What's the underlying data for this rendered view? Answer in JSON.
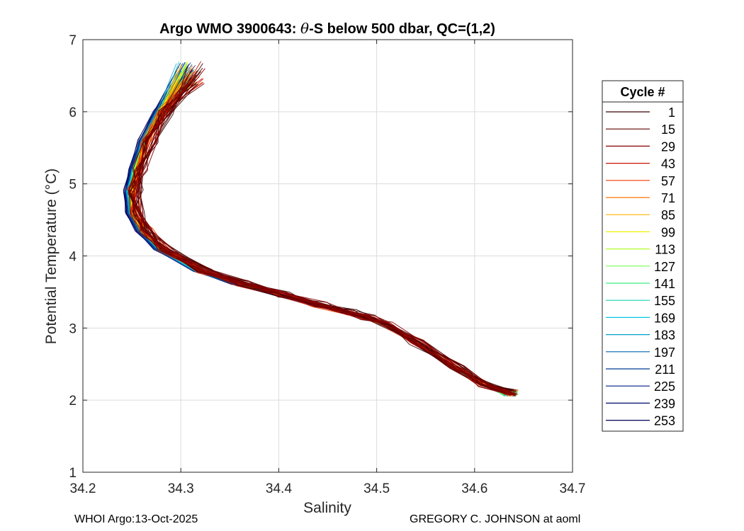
{
  "chart_data": {
    "type": "line",
    "title": "Argo WMO 3900643: θ-S below 500 dbar,  QC=(1,2)",
    "title_parts": {
      "prefix": "Argo WMO 3900643: ",
      "theta": "θ",
      "suffix": "-S below 500 dbar,  QC=(1,2)"
    },
    "xlabel": "Salinity",
    "ylabel": "Potential Temperature (°C)",
    "xlim": [
      34.2,
      34.7
    ],
    "ylim": [
      1,
      7
    ],
    "xticks": [
      "34.2",
      "34.3",
      "34.4",
      "34.5",
      "34.6",
      "34.7"
    ],
    "yticks": [
      "1",
      "2",
      "3",
      "4",
      "5",
      "6",
      "7"
    ],
    "grid": true,
    "legend_title": "Cycle #",
    "legend_position": "right",
    "legend_entries": [
      {
        "label": "1",
        "color": "#3a0000"
      },
      {
        "label": "15",
        "color": "#620000"
      },
      {
        "label": "29",
        "color": "#8a0000"
      },
      {
        "label": "43",
        "color": "#c81400"
      },
      {
        "label": "57",
        "color": "#f03c00"
      },
      {
        "label": "71",
        "color": "#ff7800"
      },
      {
        "label": "85",
        "color": "#ffb400"
      },
      {
        "label": "99",
        "color": "#f0f000"
      },
      {
        "label": "113",
        "color": "#b4ff28"
      },
      {
        "label": "127",
        "color": "#78ff50"
      },
      {
        "label": "141",
        "color": "#3cf080"
      },
      {
        "label": "155",
        "color": "#14d2b4"
      },
      {
        "label": "169",
        "color": "#00c8e6"
      },
      {
        "label": "183",
        "color": "#00a0c8"
      },
      {
        "label": "197",
        "color": "#0064b4"
      },
      {
        "label": "211",
        "color": "#003c96"
      },
      {
        "label": "225",
        "color": "#001e82"
      },
      {
        "label": "239",
        "color": "#000a6e"
      },
      {
        "label": "253",
        "color": "#00005a"
      }
    ],
    "series_base": {
      "salinity": [
        34.305,
        34.28,
        34.265,
        34.255,
        34.25,
        34.252,
        34.262,
        34.28,
        34.32,
        34.36,
        34.4,
        34.44,
        34.47,
        34.49,
        34.51,
        34.54,
        34.58,
        34.61,
        34.63
      ],
      "theta": [
        6.5,
        6.0,
        5.6,
        5.2,
        4.9,
        4.6,
        4.35,
        4.1,
        3.8,
        3.62,
        3.47,
        3.33,
        3.22,
        3.15,
        3.05,
        2.8,
        2.45,
        2.22,
        2.1
      ]
    },
    "series_count": 253
  },
  "footer": {
    "left": "WHOI Argo:13-Oct-2025",
    "right": "GREGORY C. JOHNSON at aoml"
  }
}
